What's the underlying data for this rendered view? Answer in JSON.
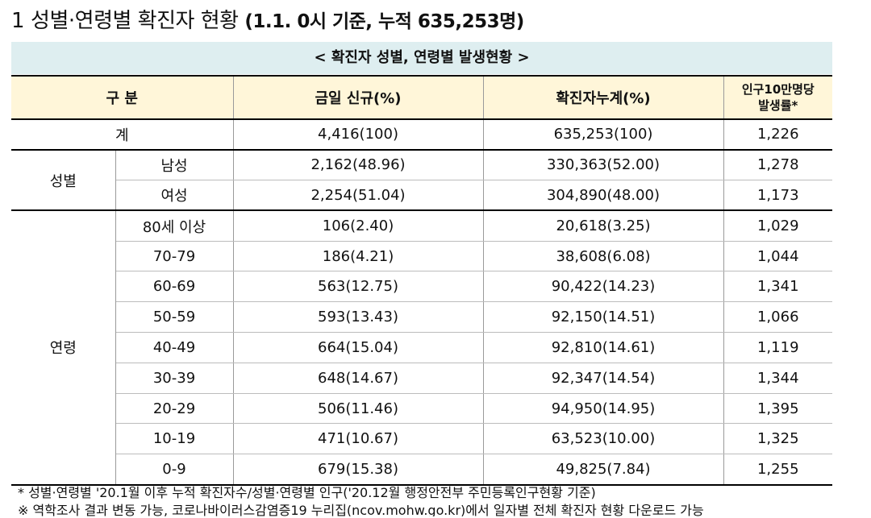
{
  "title": {
    "number": "1",
    "text": "성별·연령별 확진자 현황",
    "paren": "(1.1. 0시 기준, 누적 635,253명)"
  },
  "caption": "< 확진자 성별, 연령별 발생현황 >",
  "header": {
    "col1": "구 분",
    "col2": "금일 신규(%)",
    "col3": "확진자누계(%)",
    "col4_line1": "인구10만명당",
    "col4_line2": "발생률*"
  },
  "total": {
    "label": "계",
    "new": "4,416(100)",
    "cum": "635,253(100)",
    "rate": "1,226"
  },
  "sex": {
    "label": "성별",
    "rows": [
      {
        "label": "남성",
        "new": "2,162(48.96)",
        "cum": "330,363(52.00)",
        "rate": "1,278"
      },
      {
        "label": "여성",
        "new": "2,254(51.04)",
        "cum": "304,890(48.00)",
        "rate": "1,173"
      }
    ]
  },
  "age": {
    "label": "연령",
    "rows": [
      {
        "label": "80세 이상",
        "new": "106(2.40)",
        "cum": "20,618(3.25)",
        "rate": "1,029"
      },
      {
        "label": "70-79",
        "new": "186(4.21)",
        "cum": "38,608(6.08)",
        "rate": "1,044"
      },
      {
        "label": "60-69",
        "new": "563(12.75)",
        "cum": "90,422(14.23)",
        "rate": "1,341"
      },
      {
        "label": "50-59",
        "new": "593(13.43)",
        "cum": "92,150(14.51)",
        "rate": "1,066"
      },
      {
        "label": "40-49",
        "new": "664(15.04)",
        "cum": "92,810(14.61)",
        "rate": "1,119"
      },
      {
        "label": "30-39",
        "new": "648(14.67)",
        "cum": "92,347(14.54)",
        "rate": "1,344"
      },
      {
        "label": "20-29",
        "new": "506(11.46)",
        "cum": "94,950(14.95)",
        "rate": "1,395"
      },
      {
        "label": "10-19",
        "new": "471(10.67)",
        "cum": "63,523(10.00)",
        "rate": "1,325"
      },
      {
        "label": "0-9",
        "new": "679(15.38)",
        "cum": "49,825(7.84)",
        "rate": "1,255"
      }
    ]
  },
  "notes": {
    "line1": "* 성별·연령별 '20.1월 이후 누적 확진자수/성별·연령별 인구('20.12월 행정안전부 주민등록인구현황 기준)",
    "line2": "※ 역학조사 결과 변동 가능, 코로나바이러스감염증19 누리집(ncov.mohw.go.kr)에서 일자별 전체 확진자 현황 다운로드 가능"
  }
}
